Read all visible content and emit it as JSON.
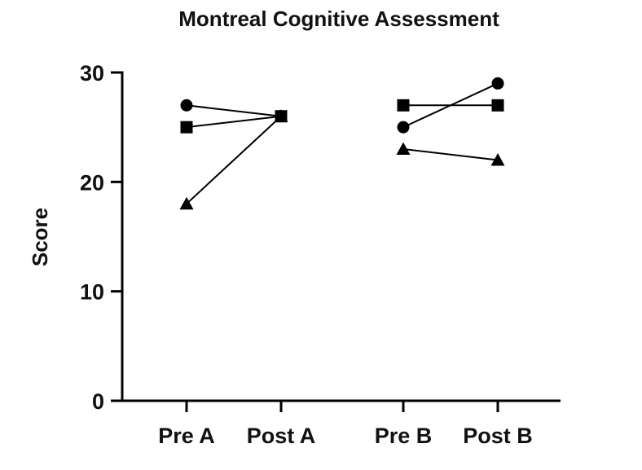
{
  "chart_data": {
    "type": "line",
    "title": "Montreal Cognitive Assessment",
    "xlabel": "",
    "ylabel": "Score",
    "ylim": [
      0,
      30
    ],
    "yticks": [
      0,
      10,
      20,
      30
    ],
    "categories": [
      "Pre A",
      "Post A",
      "Pre B",
      "Post B"
    ],
    "groups": [
      {
        "categories": [
          "Pre A",
          "Post A"
        ]
      },
      {
        "categories": [
          "Pre B",
          "Post B"
        ]
      }
    ],
    "series": [
      {
        "marker": "circle",
        "color": "#000000",
        "values": {
          "Pre A": 27,
          "Post A": 26,
          "Pre B": 25,
          "Post B": 29
        }
      },
      {
        "marker": "square",
        "color": "#000000",
        "values": {
          "Pre A": 25,
          "Post A": 26,
          "Pre B": 27,
          "Post B": 27
        }
      },
      {
        "marker": "triangle",
        "color": "#000000",
        "values": {
          "Pre A": 18,
          "Post A": 26,
          "Pre B": 23,
          "Post B": 22
        }
      }
    ],
    "grid": false,
    "legend": "none"
  }
}
